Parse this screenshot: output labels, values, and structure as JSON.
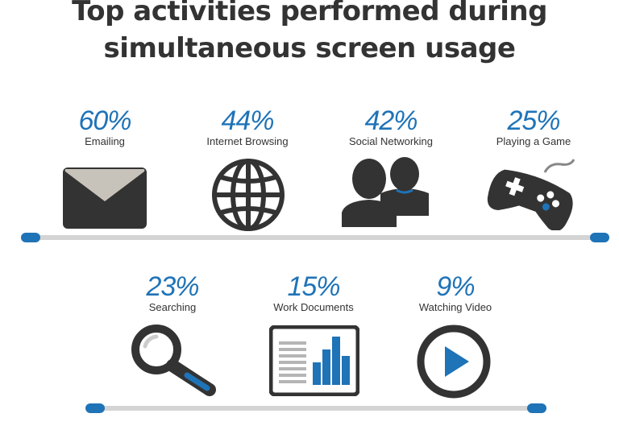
{
  "title_line1": "Top activities performed during",
  "title_line2": "simultaneous screen usage",
  "colors": {
    "accent": "#1f73b7",
    "icon": "#333333",
    "track": "#d4d4d4",
    "envelope_flap": "#c8c3ba"
  },
  "icons": [
    "envelope-icon",
    "globe-icon",
    "people-icon",
    "gamepad-icon",
    "magnifier-icon",
    "document-chart-icon",
    "play-icon"
  ],
  "chart_data": {
    "type": "bar",
    "categories": [
      "Emailing",
      "Internet Browsing",
      "Social Networking",
      "Playing a Game",
      "Searching",
      "Work Documents",
      "Watching Video"
    ],
    "values": [
      60,
      44,
      42,
      25,
      23,
      15,
      9
    ],
    "labels": [
      "60%",
      "44%",
      "42%",
      "25%",
      "23%",
      "15%",
      "9%"
    ],
    "title": "Top activities performed during simultaneous screen usage",
    "unit": "%"
  }
}
